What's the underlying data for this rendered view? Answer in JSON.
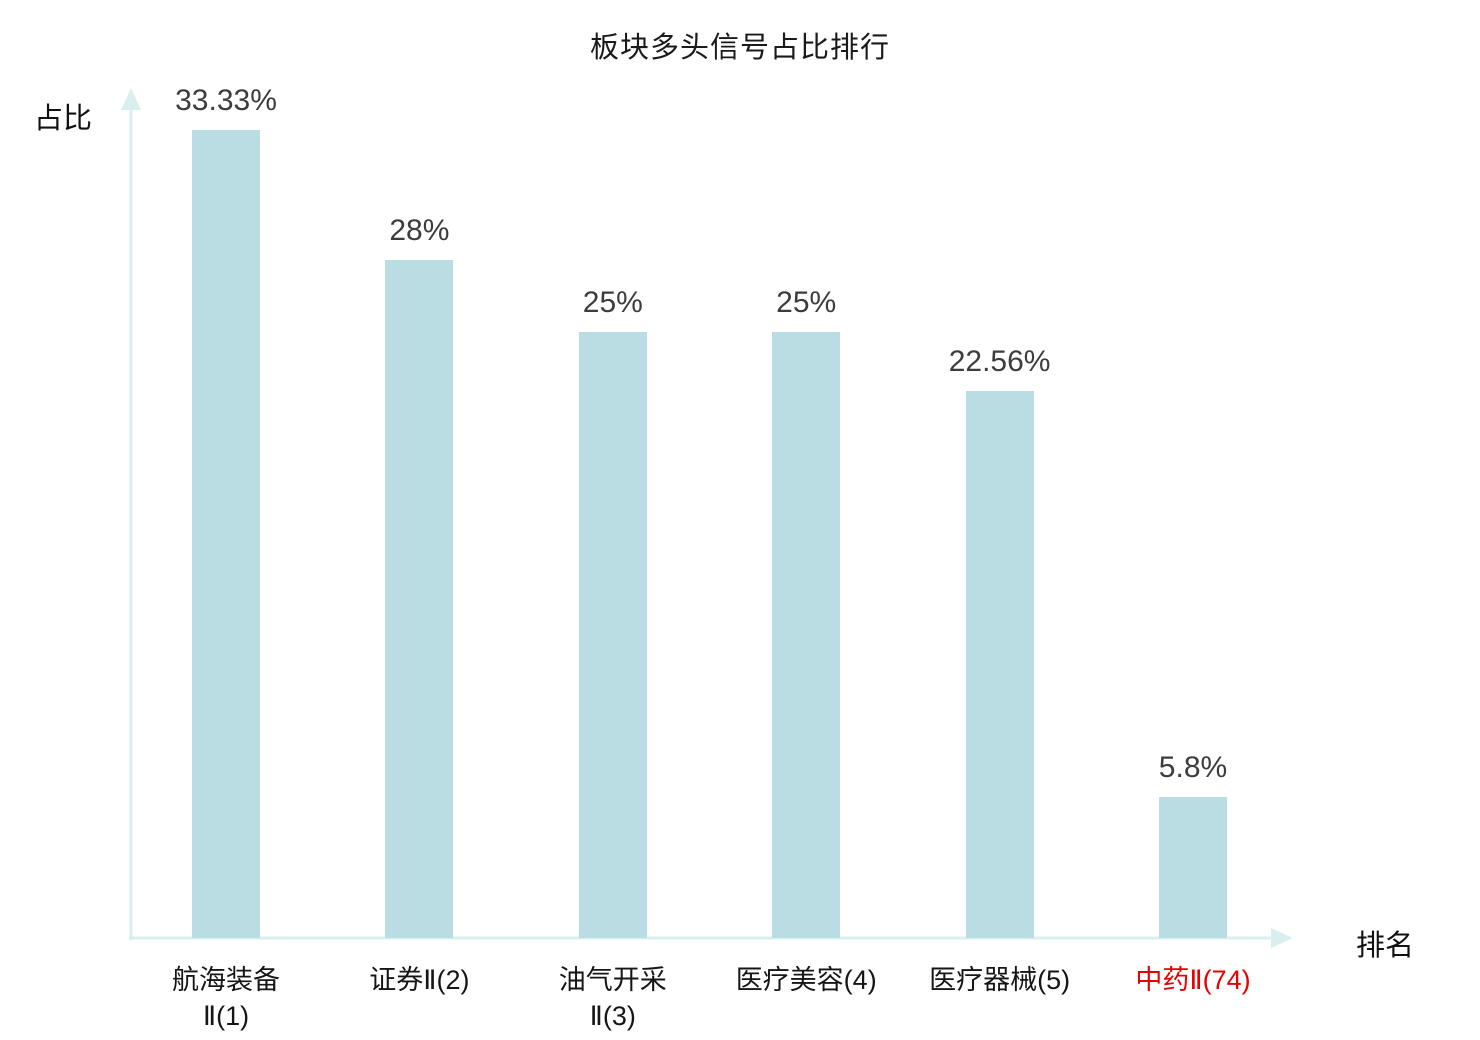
{
  "page": {
    "background": "#ffffff"
  },
  "chart_data": {
    "type": "bar",
    "title": "板块多头信号占比排行",
    "xlabel": "排名",
    "ylabel": "占比",
    "categories": [
      "航海装备Ⅱ(1)",
      "证券Ⅱ(2)",
      "油气开采Ⅱ(3)",
      "医疗美容(4)",
      "医疗器械(5)",
      "中药Ⅱ(74)"
    ],
    "category_lines": [
      [
        "航海装备",
        "Ⅱ(1)"
      ],
      [
        "证券Ⅱ(2)"
      ],
      [
        "油气开采",
        "Ⅱ(3)"
      ],
      [
        "医疗美容(4)"
      ],
      [
        "医疗器械(5)"
      ],
      [
        "中药Ⅱ(74)"
      ]
    ],
    "values": [
      33.33,
      28,
      25,
      25,
      22.56,
      5.8
    ],
    "value_labels": [
      "33.33%",
      "28%",
      "25%",
      "25%",
      "22.56%",
      "5.8%"
    ],
    "highlight_index": 5,
    "ylim": [
      0,
      35
    ],
    "grid": false,
    "legend": "none",
    "bar_color": "#b9dde2",
    "axis_color": "#d9efef",
    "value_label_color": "#3d3d3d",
    "category_label_color": "#161616",
    "highlight_label_color": "#e80000"
  }
}
